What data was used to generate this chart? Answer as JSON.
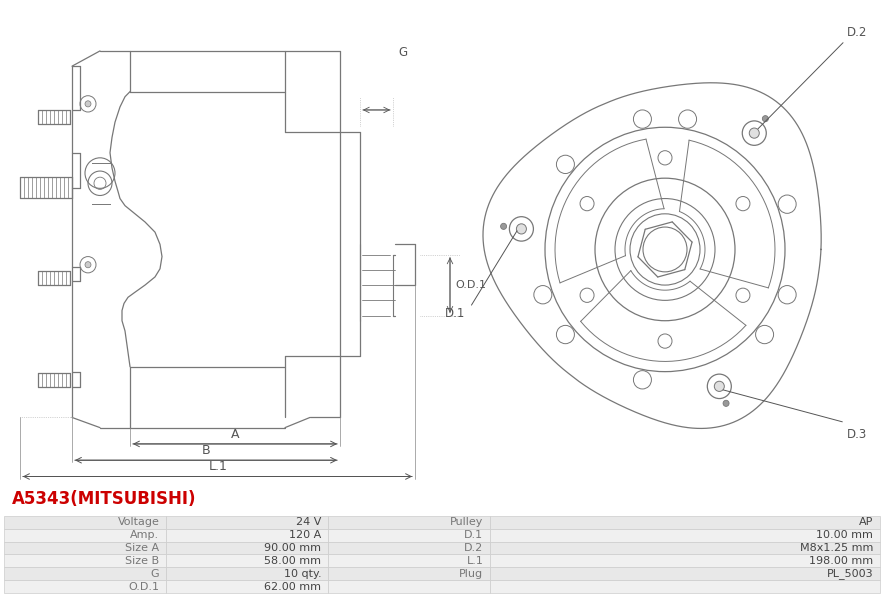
{
  "title": "A5343(MITSUBISHI)",
  "title_color": "#cc0000",
  "table_rows": [
    [
      "Voltage",
      "24 V",
      "Pulley",
      "AP"
    ],
    [
      "Amp.",
      "120 A",
      "D.1",
      "10.00 mm"
    ],
    [
      "Size A",
      "90.00 mm",
      "D.2",
      "M8x1.25 mm"
    ],
    [
      "Size B",
      "58.00 mm",
      "L.1",
      "198.00 mm"
    ],
    [
      "G",
      "10 qty.",
      "Plug",
      "PL_5003"
    ],
    [
      "O.D.1",
      "62.00 mm",
      "",
      ""
    ]
  ],
  "bg_color": "#ffffff",
  "line_color": "#777777",
  "dim_color": "#555555",
  "text_color": "#555555"
}
